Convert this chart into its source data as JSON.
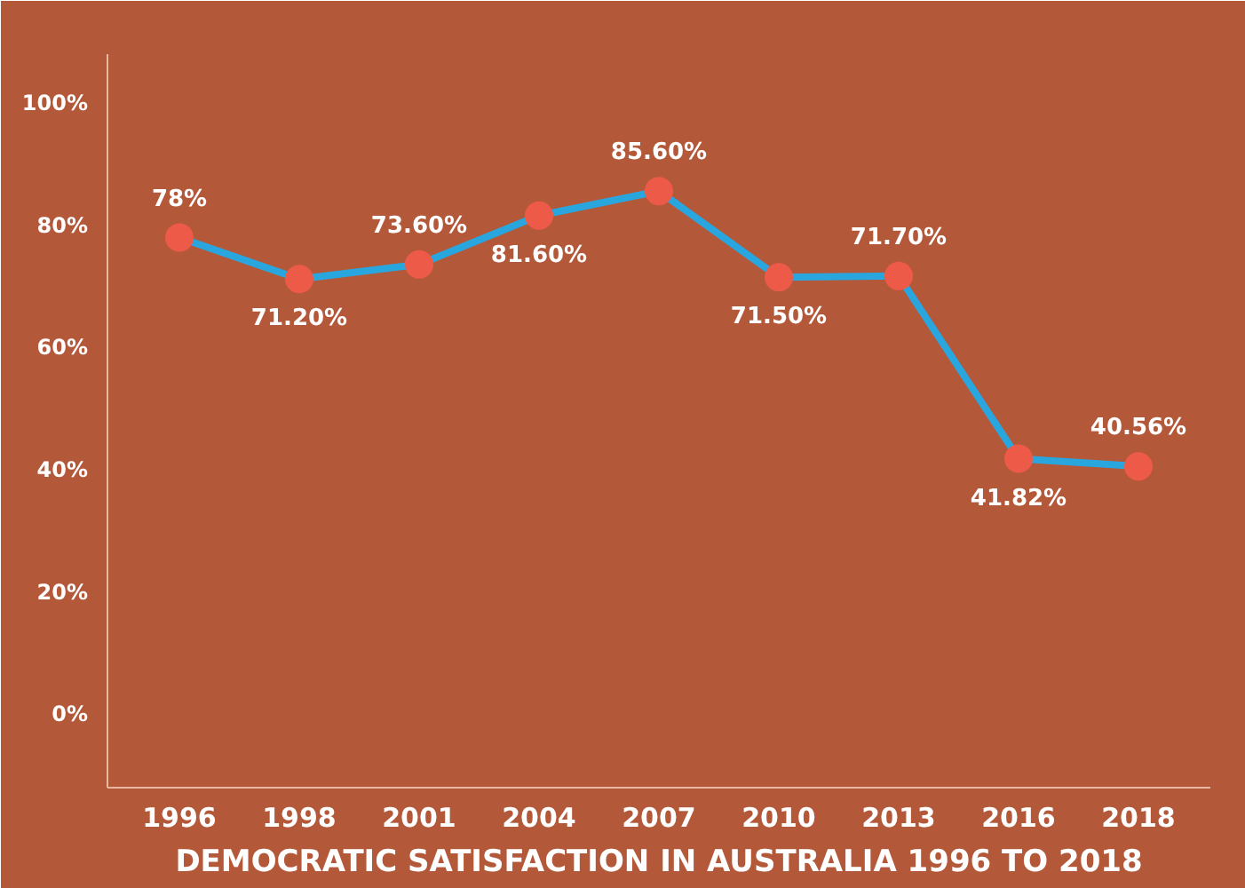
{
  "chart_data": {
    "type": "line",
    "title": "DEMOCRATIC SATISFACTION IN AUSTRALIA 1996 TO 2018",
    "categories": [
      "1996",
      "1998",
      "2001",
      "2004",
      "2007",
      "2010",
      "2013",
      "2016",
      "2018"
    ],
    "series": [
      {
        "color": "#2aa6de",
        "values": [
          78,
          71.2,
          73.6,
          81.6,
          85.6,
          71.5,
          71.7,
          41.82,
          40.56
        ]
      }
    ],
    "value_labels": [
      "78%",
      "71.20%",
      "73.60%",
      "81.60%",
      "85.60%",
      "71.50%",
      "71.70%",
      "41.82%",
      "40.56%"
    ],
    "ylim": [
      -12,
      108
    ],
    "yticks": [
      {
        "value": 0,
        "label": "0%"
      },
      {
        "value": 20,
        "label": "20%"
      },
      {
        "value": 40,
        "label": "40%"
      },
      {
        "value": 60,
        "label": "60%"
      },
      {
        "value": 80,
        "label": "80%"
      },
      {
        "value": 100,
        "label": "100%"
      }
    ],
    "grid": false,
    "marker": "circle",
    "line_style": "solid"
  }
}
